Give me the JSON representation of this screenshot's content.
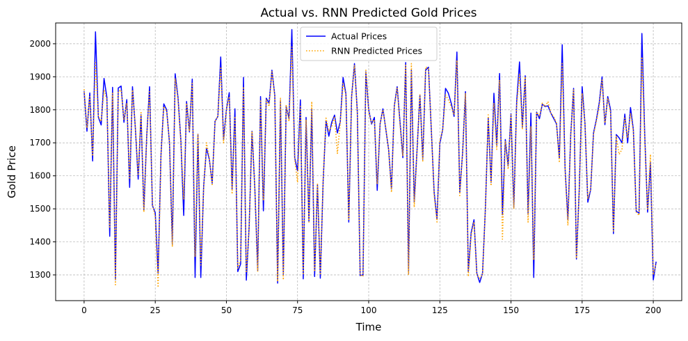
{
  "chart_data": {
    "type": "line",
    "title": "Actual vs. RNN Predicted Gold Prices",
    "xlabel": "Time",
    "ylabel": "Gold Price",
    "xlim": [
      -10,
      210
    ],
    "ylim": [
      1222,
      2063
    ],
    "xticks": [
      0,
      25,
      50,
      75,
      100,
      125,
      150,
      175,
      200
    ],
    "yticks": [
      1300,
      1400,
      1500,
      1600,
      1700,
      1800,
      1900,
      2000
    ],
    "grid": true,
    "legend_position": "upper-center",
    "series": [
      {
        "name": "Actual Prices",
        "color": "#0000ff",
        "style": "solid",
        "values": [
          1856,
          1735,
          1851,
          1645,
          2036,
          1778,
          1754,
          1895,
          1838,
          1417,
          1868,
          1285,
          1866,
          1872,
          1762,
          1831,
          1565,
          1870,
          1745,
          1590,
          1785,
          1495,
          1720,
          1870,
          1510,
          1488,
          1305,
          1660,
          1818,
          1800,
          1700,
          1394,
          1909,
          1837,
          1707,
          1480,
          1825,
          1733,
          1893,
          1292,
          1726,
          1292,
          1567,
          1684,
          1650,
          1578,
          1765,
          1780,
          1960,
          1710,
          1800,
          1852,
          1560,
          1803,
          1310,
          1333,
          1898,
          1284,
          1448,
          1735,
          1560,
          1314,
          1840,
          1494,
          1835,
          1820,
          1920,
          1844,
          1275,
          1829,
          1302,
          1810,
          1774,
          2043,
          1655,
          1615,
          1830,
          1288,
          1777,
          1462,
          1803,
          1295,
          1574,
          1290,
          1585,
          1767,
          1720,
          1762,
          1784,
          1730,
          1763,
          1898,
          1848,
          1460,
          1840,
          1940,
          1795,
          1298,
          1300,
          1915,
          1800,
          1757,
          1777,
          1556,
          1757,
          1803,
          1742,
          1680,
          1560,
          1812,
          1870,
          1764,
          1655,
          1943,
          1305,
          1920,
          1520,
          1680,
          1845,
          1650,
          1920,
          1929,
          1740,
          1550,
          1469,
          1698,
          1740,
          1865,
          1850,
          1820,
          1780,
          1975,
          1550,
          1670,
          1855,
          1310,
          1428,
          1467,
          1305,
          1277,
          1305,
          1500,
          1775,
          1580,
          1850,
          1693,
          1910,
          1482,
          1710,
          1630,
          1788,
          1505,
          1825,
          1945,
          1748,
          1903,
          1483,
          1790,
          1292,
          1793,
          1773,
          1817,
          1810,
          1812,
          1790,
          1774,
          1757,
          1653,
          1997,
          1624,
          1466,
          1726,
          1865,
          1348,
          1562,
          1870,
          1758,
          1520,
          1558,
          1730,
          1770,
          1820,
          1900,
          1755,
          1840,
          1800,
          1425,
          1725,
          1715,
          1700,
          1787,
          1700,
          1807,
          1740,
          1493,
          1487,
          2031,
          1723,
          1490,
          1640,
          1285,
          1340
        ]
      },
      {
        "name": "RNN Predicted Prices",
        "color": "#ffa500",
        "style": "dotted",
        "values": [
          1862,
          1745,
          1840,
          1660,
          1943,
          1780,
          1765,
          1860,
          1830,
          1445,
          1850,
          1270,
          1855,
          1860,
          1770,
          1820,
          1590,
          1860,
          1750,
          1605,
          1795,
          1490,
          1720,
          1855,
          1515,
          1475,
          1262,
          1660,
          1810,
          1795,
          1705,
          1385,
          1895,
          1830,
          1700,
          1530,
          1820,
          1735,
          1880,
          1355,
          1725,
          1330,
          1560,
          1700,
          1655,
          1570,
          1765,
          1780,
          1930,
          1700,
          1800,
          1840,
          1545,
          1780,
          1320,
          1345,
          1870,
          1310,
          1440,
          1735,
          1560,
          1310,
          1830,
          1525,
          1830,
          1810,
          1915,
          1840,
          1280,
          1835,
          1285,
          1815,
          1765,
          1990,
          1650,
          1580,
          1810,
          1300,
          1770,
          1460,
          1825,
          1310,
          1575,
          1300,
          1590,
          1775,
          1735,
          1750,
          1780,
          1668,
          1760,
          1880,
          1845,
          1465,
          1840,
          1935,
          1790,
          1300,
          1295,
          1920,
          1795,
          1760,
          1770,
          1575,
          1757,
          1800,
          1745,
          1680,
          1550,
          1810,
          1865,
          1755,
          1660,
          1935,
          1300,
          1940,
          1505,
          1680,
          1845,
          1645,
          1930,
          1925,
          1745,
          1540,
          1460,
          1705,
          1740,
          1845,
          1830,
          1810,
          1785,
          1950,
          1540,
          1670,
          1850,
          1295,
          1420,
          1460,
          1300,
          1290,
          1300,
          1500,
          1785,
          1570,
          1820,
          1680,
          1890,
          1408,
          1705,
          1620,
          1785,
          1500,
          1810,
          1910,
          1740,
          1900,
          1460,
          1750,
          1345,
          1793,
          1780,
          1820,
          1810,
          1825,
          1790,
          1780,
          1760,
          1640,
          1940,
          1620,
          1450,
          1720,
          1860,
          1350,
          1560,
          1850,
          1760,
          1530,
          1560,
          1725,
          1765,
          1810,
          1890,
          1760,
          1835,
          1790,
          1433,
          1720,
          1665,
          1680,
          1775,
          1715,
          1790,
          1735,
          1490,
          1480,
          1960,
          1710,
          1497,
          1665,
          1300,
          1335
        ]
      }
    ]
  }
}
